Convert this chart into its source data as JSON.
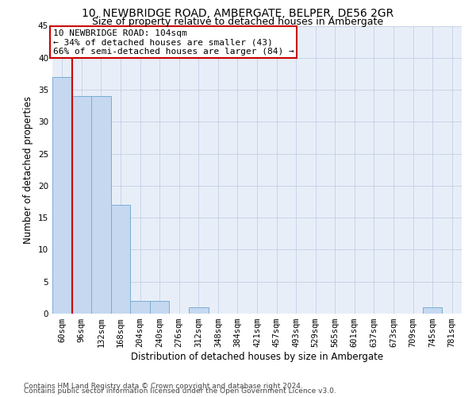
{
  "title_line1": "10, NEWBRIDGE ROAD, AMBERGATE, BELPER, DE56 2GR",
  "title_line2": "Size of property relative to detached houses in Ambergate",
  "xlabel": "Distribution of detached houses by size in Ambergate",
  "ylabel": "Number of detached properties",
  "categories": [
    "60sqm",
    "96sqm",
    "132sqm",
    "168sqm",
    "204sqm",
    "240sqm",
    "276sqm",
    "312sqm",
    "348sqm",
    "384sqm",
    "421sqm",
    "457sqm",
    "493sqm",
    "529sqm",
    "565sqm",
    "601sqm",
    "637sqm",
    "673sqm",
    "709sqm",
    "745sqm",
    "781sqm"
  ],
  "values": [
    37,
    34,
    34,
    17,
    2,
    2,
    0,
    1,
    0,
    0,
    0,
    0,
    0,
    0,
    0,
    0,
    0,
    0,
    0,
    1,
    0
  ],
  "bar_color": "#c5d8f0",
  "bar_edge_color": "#7aadd4",
  "ylim": [
    0,
    45
  ],
  "yticks": [
    0,
    5,
    10,
    15,
    20,
    25,
    30,
    35,
    40,
    45
  ],
  "grid_color": "#c8d4e8",
  "bg_color": "#e8eef8",
  "red_line_x": 0.5,
  "annotation_text_line1": "10 NEWBRIDGE ROAD: 104sqm",
  "annotation_text_line2": "← 34% of detached houses are smaller (43)",
  "annotation_text_line3": "66% of semi-detached houses are larger (84) →",
  "footer_line1": "Contains HM Land Registry data © Crown copyright and database right 2024.",
  "footer_line2": "Contains public sector information licensed under the Open Government Licence v3.0.",
  "title_fontsize": 10,
  "subtitle_fontsize": 9,
  "axis_label_fontsize": 8.5,
  "tick_fontsize": 7.5,
  "annotation_fontsize": 8,
  "footer_fontsize": 6.5
}
